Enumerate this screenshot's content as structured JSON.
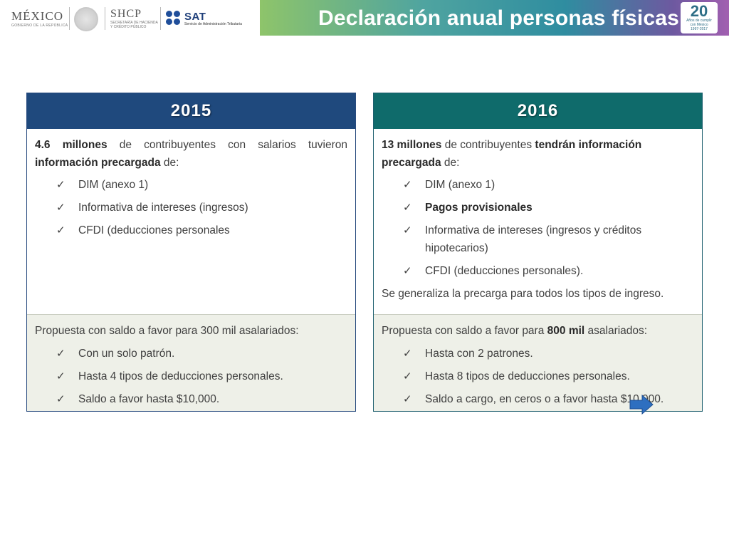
{
  "header": {
    "mexico": {
      "name": "MÉXICO",
      "sub": "GOBIERNO DE LA REPÚBLICA"
    },
    "shcp": {
      "name": "SHCP",
      "sub1": "SECRETARÍA DE HACIENDA",
      "sub2": "Y CRÉDITO PÚBLICO"
    },
    "sat": {
      "name": "SAT",
      "sub": "Servicio de Administración Tributaria"
    },
    "title": "Declaración anual personas físicas",
    "badge": {
      "number": "20",
      "sub1": "Años de cumplir",
      "sub2": "con México",
      "sub3": "1997-2017"
    }
  },
  "columns": {
    "left": {
      "year": "2015",
      "intro": {
        "bold1": "4.6 millones",
        "text1": " de contribuyentes con salarios tuvieron ",
        "bold2": "información precargada",
        "text2": " de:"
      },
      "items": [
        "DIM (anexo 1)",
        "Informativa de intereses (ingresos)",
        "CFDI (deducciones personales"
      ],
      "proposal": "Propuesta con saldo a favor para 300 mil asalariados:",
      "proposal_items": [
        "Con un solo patrón.",
        "Hasta 4 tipos de deducciones personales.",
        "Saldo a favor hasta $10,000."
      ]
    },
    "right": {
      "year": "2016",
      "intro": {
        "bold1": "13 millones",
        "text1": " de contribuyentes ",
        "bold2": "tendrán información precargada",
        "text2": " de:"
      },
      "items": [
        "DIM (anexo 1)",
        "Pagos provisionales",
        "Informativa de intereses (ingresos y créditos hipotecarios)",
        "CFDI (deducciones personales)."
      ],
      "footer": "Se generaliza la precarga para todos los tipos de ingreso.",
      "proposal": {
        "text1": "Propuesta con saldo a favor para ",
        "bold": "800 mil",
        "text2": " asalariados:"
      },
      "proposal_items": [
        "Hasta con 2 patrones.",
        "Hasta 8 tipos de deducciones personales.",
        "Saldo a cargo, en ceros o a favor hasta $10,000."
      ]
    }
  },
  "check_glyph": "✓",
  "colors": {
    "left_header": "#1f497d",
    "right_header": "#0f6b6b",
    "bottom_bg": "#eef0e8",
    "arrow": "#2e6fc0"
  }
}
